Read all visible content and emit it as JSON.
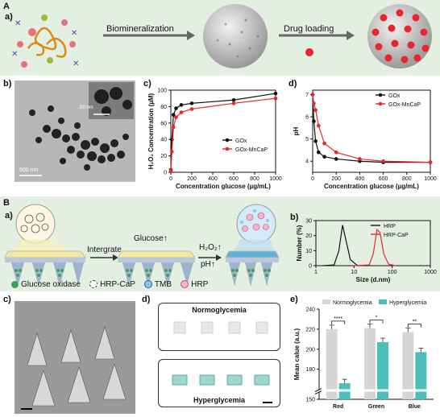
{
  "panel_A": {
    "section_label": "A",
    "sub_label": "a)",
    "step1": "Biomineralization",
    "step2": "Drug loading"
  },
  "panel_b_tem": {
    "label": "b)",
    "scale_main": "500 nm",
    "scale_inset": "50 nm"
  },
  "panel_B": {
    "section_label": "B",
    "sub_label": "a)",
    "step1": "Intergrate",
    "step1b": "Glucose↑",
    "step2_line1": "H₂O₂↑",
    "step2_line2": "pH↑",
    "legend": [
      {
        "name": "Glucose oxidase",
        "color": "#3aa35a"
      },
      {
        "name": "HRP-CaP",
        "color": "#ffffff"
      },
      {
        "name": "TMB",
        "color": "#8fc7ea"
      },
      {
        "name": "HRP",
        "color": "#f2b6c8"
      }
    ]
  },
  "panel_c_sem": {
    "label": "c)"
  },
  "panel_d_images": {
    "label": "d)",
    "top": "Normoglycemia",
    "bottom": "Hyperglycemia"
  },
  "chart_data": [
    {
      "id": "c",
      "label": "c)",
      "type": "line",
      "xlabel": "Concentration glucose (µg/mL)",
      "ylabel": "H₂O₂ Concentration (µM)",
      "xlim": [
        0,
        1000
      ],
      "ylim": [
        0,
        100
      ],
      "xticks": [
        0,
        200,
        400,
        600,
        800,
        1000
      ],
      "yticks": [
        0,
        20,
        40,
        60,
        80,
        100
      ],
      "legend_position": "right",
      "series": [
        {
          "name": "GOx",
          "color": "#111111",
          "x": [
            0,
            10,
            25,
            50,
            100,
            200,
            600,
            1000
          ],
          "y": [
            3,
            40,
            70,
            78,
            82,
            84,
            88,
            96
          ]
        },
        {
          "name": "GOx-MnCaP",
          "color": "#e8262b",
          "x": [
            0,
            10,
            25,
            50,
            100,
            200,
            600,
            1000
          ],
          "y": [
            2,
            25,
            55,
            67,
            73,
            77,
            84,
            90
          ]
        }
      ]
    },
    {
      "id": "d",
      "label": "d)",
      "type": "line",
      "xlabel": "Concentration glucose (µg/mL)",
      "ylabel": "pH",
      "xlim": [
        0,
        1000
      ],
      "ylim": [
        3.5,
        7.2
      ],
      "xticks": [
        0,
        200,
        400,
        600,
        800,
        1000
      ],
      "yticks": [
        4,
        5,
        6,
        7
      ],
      "legend_position": "top-right",
      "series": [
        {
          "name": "GOx",
          "color": "#111111",
          "x": [
            0,
            10,
            25,
            50,
            100,
            200,
            400,
            600,
            1000
          ],
          "y": [
            7.0,
            5.8,
            4.9,
            4.4,
            4.2,
            4.1,
            4.0,
            3.95,
            3.95
          ]
        },
        {
          "name": "GOx-MnCaP",
          "color": "#e8262b",
          "x": [
            0,
            10,
            25,
            50,
            100,
            200,
            400,
            600,
            1000
          ],
          "y": [
            7.0,
            6.6,
            6.3,
            5.6,
            4.8,
            4.4,
            4.1,
            4.0,
            3.95
          ]
        }
      ]
    },
    {
      "id": "Bb",
      "label": "b)",
      "type": "line",
      "xlabel": "Size (d.nm)",
      "ylabel": "Number (%)",
      "xscale": "log",
      "xlim": [
        1,
        1000
      ],
      "ylim": [
        0,
        30
      ],
      "xticks": [
        1,
        10,
        100,
        1000
      ],
      "yticks": [
        0,
        10,
        20,
        30
      ],
      "legend_position": "top-right",
      "series": [
        {
          "name": "HRP",
          "color": "#111111",
          "x": [
            1.5,
            3,
            4,
            5,
            6,
            8,
            12,
            20
          ],
          "y": [
            0,
            0.5,
            10,
            27,
            18,
            4,
            0.3,
            0
          ]
        },
        {
          "name": "HRP-CaP",
          "color": "#e8262b",
          "x": [
            10,
            25,
            32,
            40,
            48,
            60,
            80,
            120
          ],
          "y": [
            0,
            0.5,
            8,
            24,
            22,
            8,
            1,
            0
          ]
        }
      ]
    },
    {
      "id": "e",
      "label": "e)",
      "type": "bar",
      "ylabel": "Mean calue (a.u.)",
      "ylim": [
        150,
        240
      ],
      "yticks": [
        150,
        180,
        200,
        220,
        240
      ],
      "axis_break": true,
      "legend_position": "top",
      "categories": [
        "Red",
        "Green",
        "Blue"
      ],
      "category_colors": [
        "#e8262b",
        "#2e9d3a",
        "#2b59c3"
      ],
      "series": [
        {
          "name": "Normoglycemia",
          "color": "#d6d6d6",
          "values": [
            220,
            221,
            217
          ]
        },
        {
          "name": "Hyperglycemia",
          "color": "#4bbfb9",
          "values": [
            166,
            207,
            197
          ]
        }
      ],
      "significance": [
        "****",
        "*",
        "**"
      ]
    }
  ]
}
